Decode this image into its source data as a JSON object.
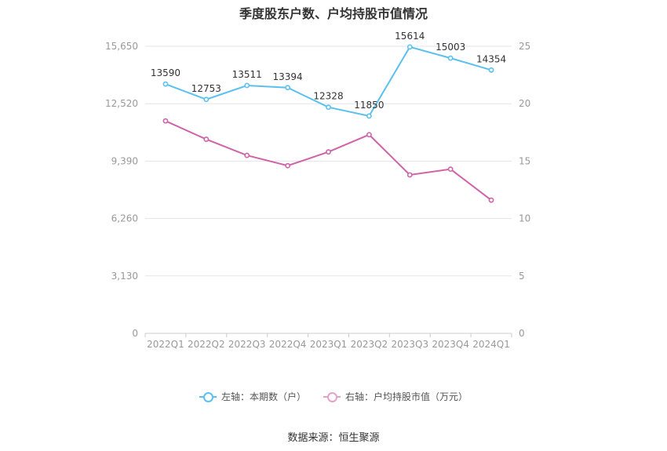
{
  "title": "季度股东户数、户均持股市值情况",
  "source": "数据来源：恒生聚源",
  "colors": {
    "series1": "#5bc0ee",
    "series2": "#d062a8",
    "grid": "#e3e3ee",
    "axis": "#cccccc"
  },
  "chart_data": {
    "type": "line",
    "title": "季度股东户数、户均持股市值情况",
    "categories": [
      "2022Q1",
      "2022Q2",
      "2022Q3",
      "2022Q4",
      "2023Q1",
      "2023Q2",
      "2023Q3",
      "2023Q4",
      "2024Q1"
    ],
    "y_left": {
      "ticks": [
        "0",
        "3,130",
        "6,260",
        "9,390",
        "12,520",
        "15,650"
      ],
      "ylim": [
        0,
        15650
      ]
    },
    "y_right": {
      "ticks": [
        "0",
        "5",
        "10",
        "15",
        "20",
        "25"
      ],
      "ylim": [
        0,
        25
      ]
    },
    "grid": true,
    "legend_position": "bottom",
    "series": [
      {
        "name": "左轴：本期数（户）",
        "axis": "left",
        "values": [
          13590,
          12753,
          13511,
          13394,
          12328,
          11850,
          15614,
          15003,
          14354
        ],
        "labels": [
          "13590",
          "12753",
          "13511",
          "13394",
          "12328",
          "11850",
          "15614",
          "15003",
          "14354"
        ]
      },
      {
        "name": "右轴：户均持股市值（万元）",
        "axis": "right",
        "values": [
          18.5,
          16.9,
          15.5,
          14.6,
          15.8,
          17.3,
          13.8,
          14.3,
          11.6
        ]
      }
    ]
  }
}
